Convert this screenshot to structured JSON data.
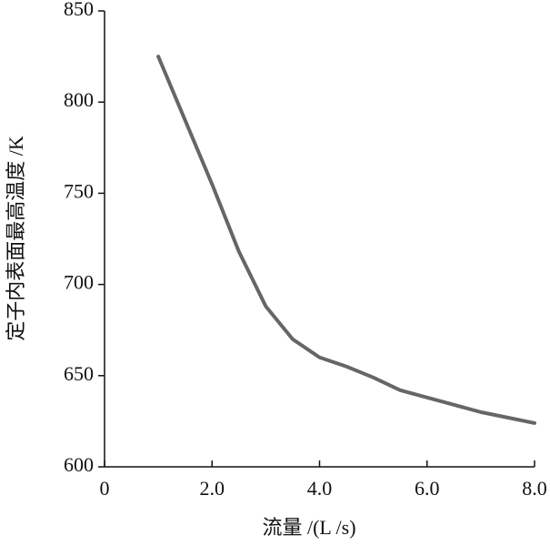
{
  "chart_data": {
    "type": "line",
    "x_label": "流量 /(L /s)",
    "y_label": "定子内表面最高温度 /K",
    "x": [
      1.0,
      1.5,
      2.0,
      2.5,
      3.0,
      3.5,
      4.0,
      4.5,
      5.0,
      5.5,
      6.0,
      6.5,
      7.0,
      7.5,
      8.0
    ],
    "series": [
      {
        "color": "#666666",
        "values": [
          825,
          790,
          755,
          718,
          688,
          670,
          660,
          655,
          649,
          642,
          638,
          634,
          630,
          627,
          624
        ]
      }
    ],
    "xlim": [
      0,
      8
    ],
    "xticks": [
      0,
      {
        "value": 2,
        "label": "2.0"
      },
      {
        "value": 4,
        "label": "4.0"
      },
      {
        "value": 6,
        "label": "6.0"
      },
      {
        "value": 8,
        "label": "8.0"
      }
    ],
    "ylim": [
      600,
      850
    ],
    "yticks": [
      600,
      650,
      700,
      750,
      800,
      850
    ]
  }
}
